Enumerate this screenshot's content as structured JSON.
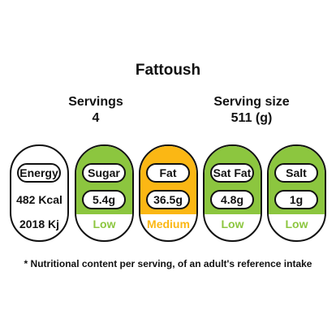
{
  "title": "Fattoush",
  "servings": {
    "label": "Servings",
    "value": "4"
  },
  "serving_size": {
    "label": "Serving size",
    "value": "511 (g)"
  },
  "energy": {
    "label": "Energy",
    "kcal": "482 Kcal",
    "kj": "2018 Kj"
  },
  "nutrients": [
    {
      "name": "Sugar",
      "value": "5.4g",
      "level": "Low"
    },
    {
      "name": "Fat",
      "value": "36.5g",
      "level": "Medium"
    },
    {
      "name": "Sat Fat",
      "value": "4.8g",
      "level": "Low"
    },
    {
      "name": "Salt",
      "value": "1g",
      "level": "Low"
    }
  ],
  "colors": {
    "low": "#8cc63f",
    "medium": "#fbb714",
    "border": "#111111"
  },
  "footnote": "* Nutritional content per serving, of an adult's reference intake"
}
